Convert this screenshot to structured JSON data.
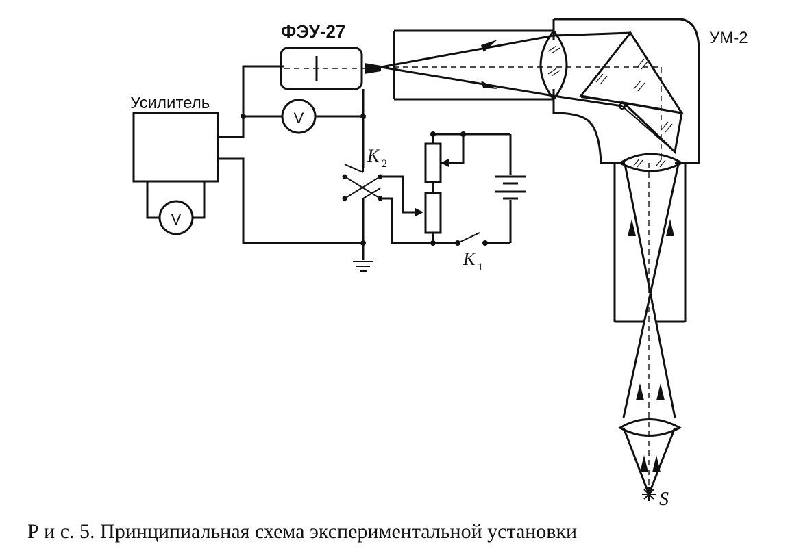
{
  "labels": {
    "pmt": "ФЭУ-27",
    "monochromator": "УМ-2",
    "amplifier": "Усилитель",
    "voltmeter_top": "V",
    "voltmeter_bottom": "V",
    "switch_k2": "K",
    "switch_k2_sub": "2",
    "switch_k1": "K",
    "switch_k1_sub": "1",
    "source": "S"
  },
  "caption": "Р и с. 5. Принципиальная схема экспериментальной установки"
}
